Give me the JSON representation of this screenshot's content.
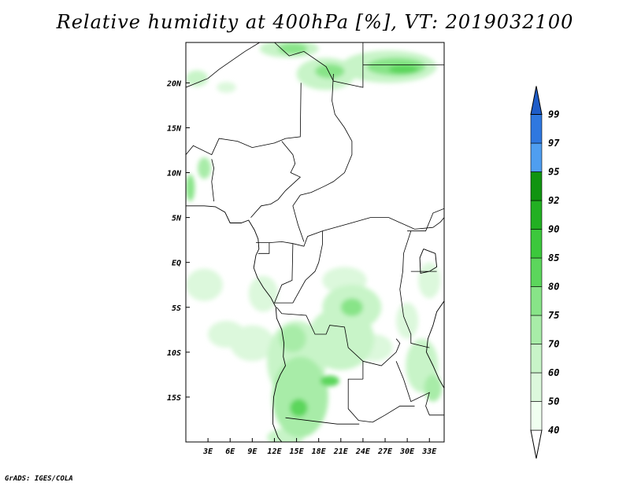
{
  "title": "Relative humidity at 400hPa [%], VT: 2019032100",
  "credit": "GrADS: IGES/COLA",
  "map": {
    "lon_range": [
      0,
      35
    ],
    "lat_range": [
      -20,
      24.5
    ],
    "lon_ticks": [
      {
        "value": 3,
        "label": "3E"
      },
      {
        "value": 6,
        "label": "6E"
      },
      {
        "value": 9,
        "label": "9E"
      },
      {
        "value": 12,
        "label": "12E"
      },
      {
        "value": 15,
        "label": "15E"
      },
      {
        "value": 18,
        "label": "18E"
      },
      {
        "value": 21,
        "label": "21E"
      },
      {
        "value": 24,
        "label": "24E"
      },
      {
        "value": 27,
        "label": "27E"
      },
      {
        "value": 30,
        "label": "30E"
      },
      {
        "value": 33,
        "label": "33E"
      }
    ],
    "lat_ticks": [
      {
        "value": 20,
        "label": "20N"
      },
      {
        "value": 15,
        "label": "15N"
      },
      {
        "value": 10,
        "label": "10N"
      },
      {
        "value": 5,
        "label": "5N"
      },
      {
        "value": 0,
        "label": "EQ"
      },
      {
        "value": -5,
        "label": "5S"
      },
      {
        "value": -10,
        "label": "10S"
      },
      {
        "value": -15,
        "label": "15S"
      }
    ]
  },
  "colorbar": {
    "levels": [
      {
        "label": "40",
        "color": "#f0fff0"
      },
      {
        "label": "50",
        "color": "#dcf8dc"
      },
      {
        "label": "60",
        "color": "#c8f4c8"
      },
      {
        "label": "70",
        "color": "#a8eca8"
      },
      {
        "label": "75",
        "color": "#88e488"
      },
      {
        "label": "80",
        "color": "#5cd65c"
      },
      {
        "label": "85",
        "color": "#3cc83c"
      },
      {
        "label": "90",
        "color": "#22b022"
      },
      {
        "label": "92",
        "color": "#109410"
      },
      {
        "label": "95",
        "color": "#4f9ef0"
      },
      {
        "label": "97",
        "color": "#2f78e0"
      },
      {
        "label": "99",
        "color": "#1e5cc8"
      }
    ],
    "lower_color": "#ffffff"
  },
  "humidity_fields": [
    {
      "lon": 14,
      "lat": 23.8,
      "rx": 4,
      "ry": 1,
      "level": 2
    },
    {
      "lon": 14.5,
      "lat": 23.8,
      "rx": 2,
      "ry": 0.6,
      "level": 4
    },
    {
      "lon": 19,
      "lat": 21,
      "rx": 4,
      "ry": 1.8,
      "level": 2
    },
    {
      "lon": 19.5,
      "lat": 21.3,
      "rx": 2,
      "ry": 0.8,
      "level": 4
    },
    {
      "lon": 27.5,
      "lat": 21.8,
      "rx": 6.5,
      "ry": 1.8,
      "level": 2
    },
    {
      "lon": 28.5,
      "lat": 21.8,
      "rx": 4,
      "ry": 1,
      "level": 4
    },
    {
      "lon": 29.5,
      "lat": 21.5,
      "rx": 2,
      "ry": 0.5,
      "level": 5
    },
    {
      "lon": 5.5,
      "lat": 19.5,
      "rx": 1.3,
      "ry": 0.6,
      "level": 1
    },
    {
      "lon": 1.5,
      "lat": 20.5,
      "rx": 1.5,
      "ry": 0.9,
      "level": 2
    },
    {
      "lon": 2.5,
      "lat": 10.5,
      "rx": 0.9,
      "ry": 1.2,
      "level": 3
    },
    {
      "lon": 0.6,
      "lat": 8.3,
      "rx": 0.6,
      "ry": 1.5,
      "level": 4
    },
    {
      "lon": 2.5,
      "lat": -2.5,
      "rx": 2.5,
      "ry": 1.8,
      "level": 1
    },
    {
      "lon": 5.5,
      "lat": -8,
      "rx": 2.5,
      "ry": 1.5,
      "level": 1
    },
    {
      "lon": 9,
      "lat": -9,
      "rx": 3,
      "ry": 2,
      "level": 1
    },
    {
      "lon": 10.5,
      "lat": -3.5,
      "rx": 2,
      "ry": 2,
      "level": 1
    },
    {
      "lon": 15,
      "lat": -11,
      "rx": 4,
      "ry": 4.5,
      "level": 2
    },
    {
      "lon": 15.5,
      "lat": -15,
      "rx": 3.8,
      "ry": 4.5,
      "level": 3
    },
    {
      "lon": 15.3,
      "lat": -16.2,
      "rx": 1.2,
      "ry": 1,
      "level": 5
    },
    {
      "lon": 14.5,
      "lat": -8.5,
      "rx": 1.8,
      "ry": 1.5,
      "level": 3
    },
    {
      "lon": 19.5,
      "lat": -13.2,
      "rx": 1.3,
      "ry": 0.6,
      "level": 5
    },
    {
      "lon": 21,
      "lat": -8.5,
      "rx": 4.5,
      "ry": 3.5,
      "level": 2
    },
    {
      "lon": 22.5,
      "lat": -5,
      "rx": 4,
      "ry": 2.5,
      "level": 2
    },
    {
      "lon": 22.5,
      "lat": -5,
      "rx": 1.5,
      "ry": 1,
      "level": 4
    },
    {
      "lon": 21.5,
      "lat": -2,
      "rx": 3,
      "ry": 1.5,
      "level": 1
    },
    {
      "lon": 25.5,
      "lat": -9.5,
      "rx": 2.5,
      "ry": 1.5,
      "level": 1
    },
    {
      "lon": 32,
      "lat": -11.5,
      "rx": 2.2,
      "ry": 3,
      "level": 2
    },
    {
      "lon": 33.5,
      "lat": -14,
      "rx": 1.2,
      "ry": 1.5,
      "level": 3
    },
    {
      "lon": 33,
      "lat": -2,
      "rx": 1.5,
      "ry": 2,
      "level": 1
    },
    {
      "lon": 13.5,
      "lat": -19.5,
      "rx": 2.5,
      "ry": 1,
      "level": 2
    },
    {
      "lon": 30,
      "lat": -6.5,
      "rx": 1.5,
      "ry": 2,
      "level": 1
    }
  ],
  "coastlines": [
    [
      [
        0,
        6.3
      ],
      [
        2.5,
        6.3
      ],
      [
        4,
        6.2
      ],
      [
        5.3,
        5.6
      ],
      [
        6,
        4.4
      ],
      [
        7.5,
        4.4
      ],
      [
        8.5,
        4.7
      ],
      [
        9.3,
        3.6
      ],
      [
        9.8,
        2.6
      ],
      [
        9.9,
        1.5
      ],
      [
        9.5,
        0.8
      ],
      [
        9.2,
        -0.6
      ],
      [
        9.7,
        -1.7
      ],
      [
        10.5,
        -2.8
      ],
      [
        11.5,
        -3.9
      ],
      [
        12.2,
        -5
      ],
      [
        12.3,
        -6.2
      ],
      [
        13,
        -7.5
      ],
      [
        13.3,
        -9
      ],
      [
        13.2,
        -10.5
      ],
      [
        13.5,
        -11.5
      ],
      [
        12.8,
        -12.5
      ],
      [
        12.3,
        -13.5
      ],
      [
        11.9,
        -15
      ],
      [
        11.8,
        -16.5
      ],
      [
        11.8,
        -18
      ],
      [
        12.5,
        -19.5
      ],
      [
        13,
        -20
      ]
    ],
    [
      [
        35,
        -4.3
      ],
      [
        34,
        -5.5
      ],
      [
        33.5,
        -7
      ],
      [
        32.8,
        -8.5
      ],
      [
        32.6,
        -10
      ],
      [
        33.5,
        -11.5
      ],
      [
        34.3,
        -13
      ],
      [
        35,
        -14
      ]
    ],
    [
      [
        32.2,
        1.5
      ],
      [
        33.8,
        1
      ],
      [
        34,
        -0.5
      ],
      [
        33,
        -1
      ],
      [
        31.8,
        -1.2
      ],
      [
        31.7,
        0.5
      ],
      [
        32.2,
        1.5
      ]
    ]
  ],
  "borders": [
    [
      [
        0,
        19.5
      ],
      [
        3,
        20.5
      ],
      [
        4.5,
        21.5
      ],
      [
        8,
        23.5
      ],
      [
        10,
        24.5
      ]
    ],
    [
      [
        12,
        24.5
      ],
      [
        14,
        23
      ],
      [
        16,
        23.5
      ],
      [
        19,
        21.8
      ],
      [
        20,
        20.2
      ],
      [
        24,
        19.5
      ],
      [
        24,
        24.5
      ]
    ],
    [
      [
        24,
        22
      ],
      [
        35,
        22
      ]
    ],
    [
      [
        20,
        21
      ],
      [
        19.8,
        18
      ],
      [
        20.2,
        16.5
      ],
      [
        21.5,
        15
      ],
      [
        22.5,
        13.5
      ],
      [
        22.5,
        12
      ],
      [
        22,
        11
      ],
      [
        21.5,
        10
      ],
      [
        20,
        9
      ],
      [
        18.8,
        8.5
      ],
      [
        17,
        7.8
      ],
      [
        15.5,
        7.5
      ],
      [
        14.5,
        6.3
      ],
      [
        15.2,
        4.2
      ],
      [
        16,
        2.3
      ]
    ],
    [
      [
        0,
        12
      ],
      [
        1,
        13
      ],
      [
        3.5,
        12
      ],
      [
        4.5,
        13.8
      ],
      [
        7,
        13.5
      ],
      [
        9,
        12.8
      ],
      [
        12,
        13.3
      ],
      [
        13.5,
        13.8
      ],
      [
        15.5,
        14
      ],
      [
        15.6,
        20
      ]
    ],
    [
      [
        3.8,
        6.8
      ],
      [
        3.5,
        9
      ],
      [
        3.8,
        10.5
      ],
      [
        3.5,
        11.5
      ]
    ],
    [
      [
        13,
        13.5
      ],
      [
        14.5,
        12
      ],
      [
        14.8,
        11
      ],
      [
        14.2,
        10
      ],
      [
        15.5,
        9.5
      ],
      [
        13.5,
        8
      ],
      [
        12.5,
        7
      ],
      [
        11.5,
        6.5
      ],
      [
        10.2,
        6.3
      ],
      [
        8.8,
        5
      ]
    ],
    [
      [
        9.5,
        2.2
      ],
      [
        11.3,
        2.2
      ],
      [
        11.3,
        1
      ],
      [
        9.8,
        1
      ]
    ],
    [
      [
        11.3,
        2.2
      ],
      [
        13,
        2.3
      ],
      [
        14.5,
        2.1
      ],
      [
        16,
        1.8
      ],
      [
        16.5,
        2.9
      ],
      [
        18.5,
        3.5
      ],
      [
        22,
        4.3
      ],
      [
        25,
        5
      ],
      [
        27.5,
        5
      ],
      [
        31,
        3.7
      ],
      [
        33.5,
        3.9
      ]
    ],
    [
      [
        14.5,
        2.1
      ],
      [
        14.4,
        -2
      ],
      [
        13,
        -2.5
      ],
      [
        12,
        -4.5
      ],
      [
        14.5,
        -4.5
      ],
      [
        16.2,
        -2
      ],
      [
        17.5,
        -1
      ],
      [
        18,
        0
      ],
      [
        18.5,
        2
      ],
      [
        18.5,
        3.5
      ]
    ],
    [
      [
        12.3,
        -5
      ],
      [
        13,
        -5.7
      ],
      [
        16.3,
        -5.9
      ],
      [
        17.5,
        -8
      ],
      [
        19,
        -8
      ],
      [
        19.5,
        -7
      ],
      [
        21.5,
        -7.2
      ],
      [
        22,
        -9.5
      ],
      [
        24,
        -11
      ],
      [
        24,
        -13
      ]
    ],
    [
      [
        24,
        -13
      ],
      [
        22,
        -13
      ],
      [
        22,
        -16.3
      ],
      [
        23.4,
        -17.6
      ],
      [
        25.3,
        -17.8
      ]
    ],
    [
      [
        30.5,
        3.5
      ],
      [
        29.5,
        1
      ],
      [
        29.4,
        -1
      ],
      [
        29,
        -3
      ],
      [
        29.5,
        -6
      ],
      [
        30.5,
        -8
      ],
      [
        30.5,
        -9
      ],
      [
        33,
        -9.5
      ]
    ],
    [
      [
        24,
        -11
      ],
      [
        26.5,
        -11.5
      ],
      [
        28.5,
        -10
      ],
      [
        29,
        -9
      ],
      [
        28.5,
        -8.5
      ]
    ],
    [
      [
        28.5,
        -11
      ],
      [
        29.5,
        -13
      ],
      [
        30.5,
        -15.5
      ],
      [
        33,
        -14.5
      ],
      [
        32.5,
        -16
      ],
      [
        33,
        -17
      ],
      [
        35,
        -17
      ]
    ],
    [
      [
        25.3,
        -17.8
      ],
      [
        27,
        -17
      ],
      [
        29,
        -16
      ],
      [
        31,
        -16
      ]
    ],
    [
      [
        13.5,
        -17.3
      ],
      [
        20.5,
        -18
      ],
      [
        23.5,
        -18
      ]
    ],
    [
      [
        33.5,
        3.9
      ],
      [
        34.5,
        4.5
      ],
      [
        35,
        5
      ]
    ],
    [
      [
        30,
        3.5
      ],
      [
        32.5,
        3.5
      ],
      [
        33.5,
        5.5
      ],
      [
        35,
        6
      ]
    ],
    [
      [
        30.5,
        -1
      ],
      [
        34,
        -1
      ]
    ]
  ]
}
